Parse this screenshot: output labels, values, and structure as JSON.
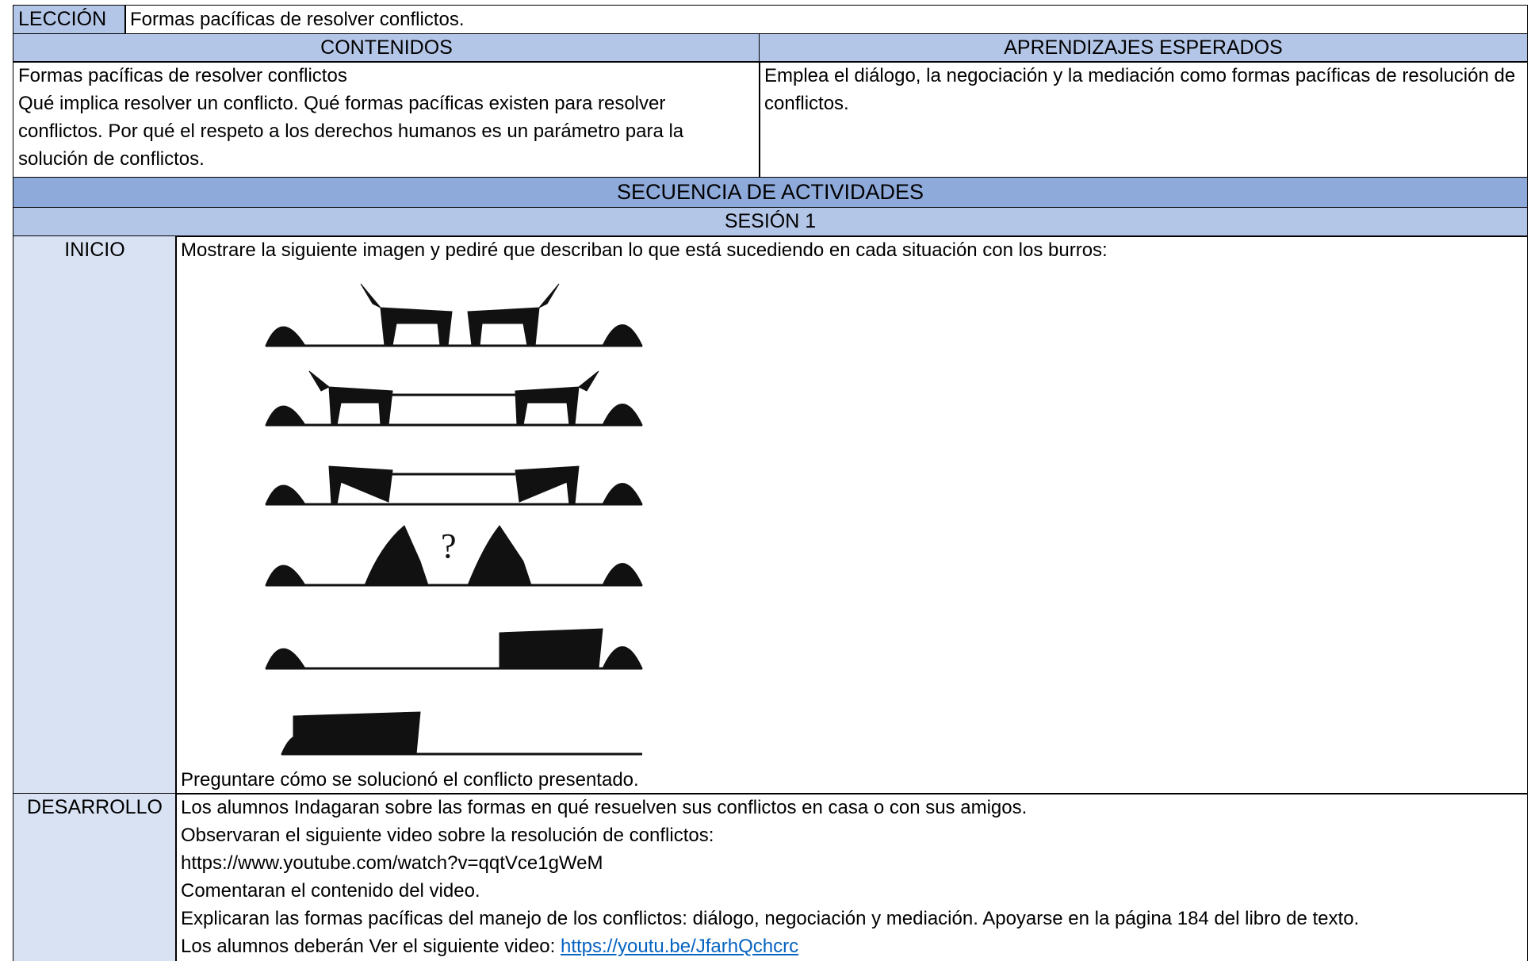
{
  "lesson": {
    "label": "LECCIÓN",
    "title": "Formas pacíficas de resolver conflictos."
  },
  "headers": {
    "contenidos": "CONTENIDOS",
    "aprendizajes": "APRENDIZAJES ESPERADOS"
  },
  "contenidos": [
    "Formas pacíficas de resolver conflictos",
    "Qué implica resolver un conflicto. Qué formas pacíficas existen para resolver conflictos. Por qué el respeto a los derechos humanos es un parámetro para la solución de conflictos."
  ],
  "aprendizajes": "Emplea el diálogo, la negociación y la mediación como formas pacíficas de resolución de conflictos.",
  "secuencia": "SECUENCIA DE ACTIVIDADES",
  "sesion": "SESIÓN 1",
  "inicio": {
    "label": "INICIO",
    "intro": "Mostrare la siguiente imagen y pediré que describan lo que está sucediendo en cada situación con los burros:",
    "closing": "Preguntare cómo se solucionó el conflicto presentado."
  },
  "desarrollo": {
    "label": "DESARROLLO",
    "lines": [
      "Los alumnos Indagaran sobre las formas en qué resuelven sus conflictos en casa o con sus amigos.",
      "Observaran el siguiente video sobre la resolución de conflictos:",
      "https://www.youtube.com/watch?v=qqtVce1gWeM",
      "Comentaran el contenido del video.",
      "Explicaran las formas pacíficas del manejo de los conflictos: diálogo, negociación y mediación. Apoyarse en la página 184 del libro de texto."
    ],
    "link_prefix": "Los alumnos deberán Ver el siguiente video:",
    "link": "https://youtu.be/JfarhQchcrc"
  }
}
